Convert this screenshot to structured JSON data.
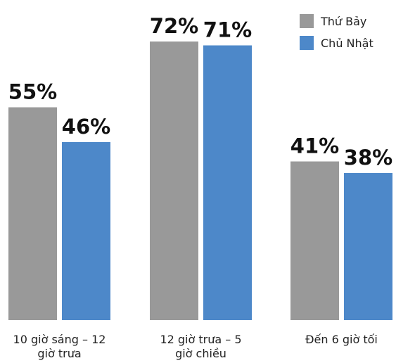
{
  "chart_data": {
    "type": "bar",
    "categories": [
      "10 giờ sáng – 12 giờ trưa",
      "12 giờ trưa – 5 giờ chiều",
      "Đến 6 giờ tối"
    ],
    "category_lines": [
      [
        "10 giờ sáng – 12",
        "giờ trưa"
      ],
      [
        "12 giờ trưa – 5",
        "giờ chiều"
      ],
      [
        "Đến 6 giờ tối"
      ]
    ],
    "series": [
      {
        "name": "Thứ Bảy",
        "values": [
          55,
          72,
          41
        ],
        "labels": [
          "55%",
          "72%",
          "41%"
        ],
        "color": "#999999"
      },
      {
        "name": "Chủ Nhật",
        "values": [
          46,
          71,
          38
        ],
        "labels": [
          "46%",
          "71%",
          "38%"
        ],
        "color": "#4d88c9"
      }
    ],
    "ylim": [
      0,
      100
    ],
    "unit": "%",
    "grid": false,
    "legend": "top-right"
  }
}
